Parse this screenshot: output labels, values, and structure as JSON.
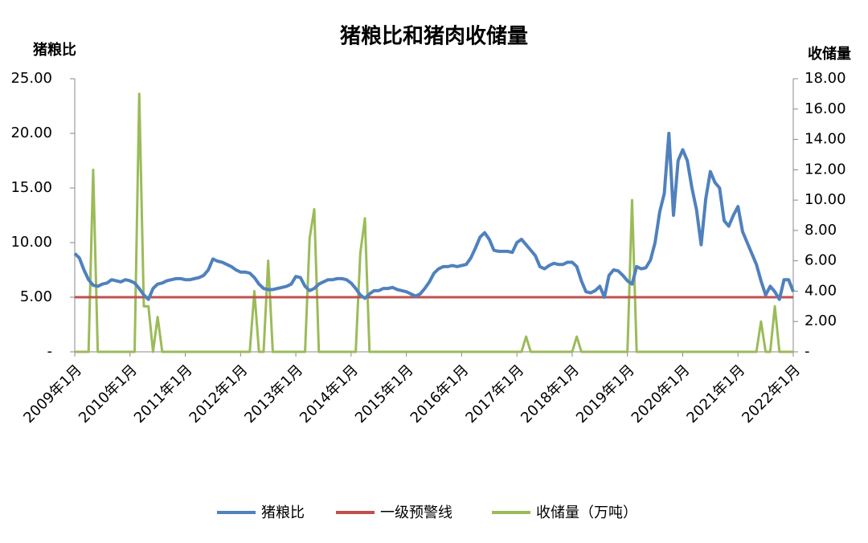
{
  "chart_data": {
    "type": "line",
    "title": "猪粮比和猪肉收储量",
    "ylabel": "猪粮比",
    "y2label": "收储量",
    "x": [
      "2009年1月",
      null,
      null,
      null,
      null,
      null,
      null,
      null,
      null,
      null,
      null,
      null,
      "2010年1月",
      null,
      null,
      null,
      null,
      null,
      null,
      null,
      null,
      null,
      null,
      null,
      "2011年1月",
      null,
      null,
      null,
      null,
      null,
      null,
      null,
      null,
      null,
      null,
      null,
      "2012年1月",
      null,
      null,
      null,
      null,
      null,
      null,
      null,
      null,
      null,
      null,
      null,
      "2013年1月",
      null,
      null,
      null,
      null,
      null,
      null,
      null,
      null,
      null,
      null,
      null,
      "2014年1月",
      null,
      null,
      null,
      null,
      null,
      null,
      null,
      null,
      null,
      null,
      null,
      "2015年1月",
      null,
      null,
      null,
      null,
      null,
      null,
      null,
      null,
      null,
      null,
      null,
      "2016年1月",
      null,
      null,
      null,
      null,
      null,
      null,
      null,
      null,
      null,
      null,
      null,
      "2017年1月",
      null,
      null,
      null,
      null,
      null,
      null,
      null,
      null,
      null,
      null,
      null,
      "2018年1月",
      null,
      null,
      null,
      null,
      null,
      null,
      null,
      null,
      null,
      null,
      null,
      "2019年1月",
      null,
      null,
      null,
      null,
      null,
      null,
      null,
      null,
      null,
      null,
      null,
      "2020年1月",
      null,
      null,
      null,
      null,
      null,
      null,
      null,
      null,
      null,
      null,
      null,
      "2021年1月",
      null,
      null,
      null,
      null,
      null,
      null,
      null,
      null,
      null,
      null,
      null,
      "2022年1月"
    ],
    "series": [
      {
        "name": "猪粮比",
        "color": "#4f81bd",
        "axis": "y",
        "values": [
          9.0,
          8.6,
          7.5,
          6.6,
          6.1,
          6.0,
          6.2,
          6.3,
          6.6,
          6.5,
          6.4,
          6.6,
          6.5,
          6.3,
          5.8,
          5.2,
          4.8,
          5.8,
          6.2,
          6.3,
          6.5,
          6.6,
          6.7,
          6.7,
          6.6,
          6.6,
          6.7,
          6.8,
          7.0,
          7.5,
          8.5,
          8.3,
          8.2,
          8.0,
          7.8,
          7.5,
          7.3,
          7.3,
          7.2,
          6.8,
          6.2,
          5.8,
          5.7,
          5.7,
          5.8,
          5.9,
          6.0,
          6.2,
          6.9,
          6.8,
          6.0,
          5.6,
          5.8,
          6.2,
          6.4,
          6.6,
          6.6,
          6.7,
          6.7,
          6.6,
          6.3,
          5.8,
          5.2,
          4.9,
          5.3,
          5.6,
          5.6,
          5.8,
          5.8,
          5.9,
          5.7,
          5.6,
          5.5,
          5.3,
          5.1,
          5.3,
          5.8,
          6.4,
          7.2,
          7.6,
          7.8,
          7.8,
          7.9,
          7.8,
          7.9,
          8.0,
          8.6,
          9.5,
          10.5,
          10.9,
          10.3,
          9.3,
          9.2,
          9.2,
          9.2,
          9.1,
          10.0,
          10.3,
          9.8,
          9.3,
          8.8,
          7.8,
          7.6,
          7.9,
          8.1,
          8.0,
          8.0,
          8.2,
          8.2,
          7.8,
          6.5,
          5.5,
          5.4,
          5.6,
          6.0,
          5.0,
          7.0,
          7.5,
          7.4,
          7.0,
          6.5,
          6.2,
          7.8,
          7.6,
          7.7,
          8.4,
          10.0,
          12.8,
          14.5,
          20.0,
          12.5,
          17.5,
          18.5,
          17.5,
          15.0,
          13.0,
          9.8,
          14.0,
          16.5,
          15.5,
          15.0,
          12.0,
          11.5,
          12.5,
          13.3,
          11.0,
          10.0,
          9.0,
          8.0,
          6.5,
          5.2,
          6.0,
          5.5,
          4.8,
          6.6,
          6.6,
          5.5
        ]
      },
      {
        "name": "一级预警线",
        "color": "#c0504d",
        "axis": "y",
        "value": 5
      },
      {
        "name": "收储量（万吨）",
        "color": "#9bbb59",
        "axis": "y2",
        "values": [
          0,
          0,
          0,
          0,
          12,
          0,
          0,
          0,
          0,
          0,
          0,
          0,
          0,
          0,
          17,
          3,
          3,
          0,
          2.3,
          0,
          0,
          0,
          0,
          0,
          0,
          0,
          0,
          0,
          0,
          0,
          0,
          0,
          0,
          0,
          0,
          0,
          0,
          0,
          0,
          4,
          0,
          0,
          6,
          0,
          0,
          0,
          0,
          0,
          0,
          0,
          0,
          7.5,
          9.4,
          0,
          0,
          0,
          0,
          0,
          0,
          0,
          0,
          0,
          6.5,
          8.8,
          0,
          0,
          0,
          0,
          0,
          0,
          0,
          0,
          0,
          0,
          0,
          0,
          0,
          0,
          0,
          0,
          0,
          0,
          0,
          0,
          0,
          0,
          0,
          0,
          0,
          0,
          0,
          0,
          0,
          0,
          0,
          0,
          0,
          0,
          1,
          0,
          0,
          0,
          0,
          0,
          0,
          0,
          0,
          0,
          0,
          1,
          0,
          0,
          0,
          0,
          0,
          0,
          0,
          0,
          0,
          0,
          0,
          10,
          0,
          0,
          0,
          0,
          0,
          0,
          0,
          0,
          0,
          0,
          0,
          0,
          0,
          0,
          0,
          0,
          0,
          0,
          0,
          0,
          0,
          0,
          0,
          0,
          0,
          0,
          0,
          2,
          0,
          0,
          3,
          0,
          0,
          0,
          0
        ]
      }
    ],
    "ylim": [
      0,
      25
    ],
    "yticks": [
      {
        "value": 0,
        "label": "-"
      },
      {
        "value": 5,
        "label": "5.00"
      },
      {
        "value": 10,
        "label": "10.00"
      },
      {
        "value": 15,
        "label": "15.00"
      },
      {
        "value": 20,
        "label": "20.00"
      },
      {
        "value": 25,
        "label": "25.00"
      }
    ],
    "y2lim": [
      0,
      18
    ],
    "y2ticks": [
      {
        "value": 0,
        "label": "-"
      },
      {
        "value": 2,
        "label": "2.00"
      },
      {
        "value": 4,
        "label": "4.00"
      },
      {
        "value": 6,
        "label": "6.00"
      },
      {
        "value": 8,
        "label": "8.00"
      },
      {
        "value": 10,
        "label": "10.00"
      },
      {
        "value": 12,
        "label": "12.00"
      },
      {
        "value": 14,
        "label": "14.00"
      },
      {
        "value": 16,
        "label": "16.00"
      },
      {
        "value": 18,
        "label": "18.00"
      }
    ],
    "grid": false,
    "legend": "bottom"
  }
}
